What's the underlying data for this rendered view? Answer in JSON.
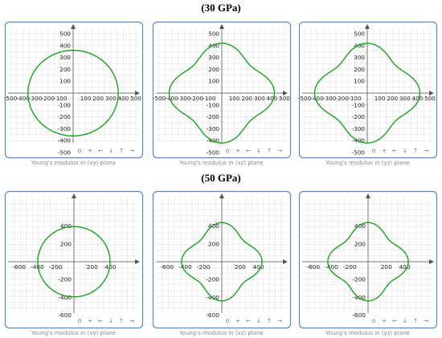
{
  "titles": [
    "(30 GPa)",
    "(50 GPa)"
  ],
  "toolbar_glyphs": [
    "o",
    "+",
    "←",
    "↓",
    "↑",
    "→"
  ],
  "colors": {
    "curve": "#19a31e",
    "frame": "#5b86c4",
    "grid": "#dddddd",
    "axis": "#555555",
    "caption": "#888888"
  },
  "chart_data": [
    {
      "type": "line",
      "title": "",
      "xlabel": "Young's modulus in (xy) plane",
      "xlim": [
        -500,
        500
      ],
      "ylim": [
        -500,
        500
      ],
      "xticks": [
        -500,
        -400,
        -300,
        -200,
        -100,
        100,
        200,
        300,
        400,
        500
      ],
      "yticks": [
        500,
        400,
        300,
        200,
        100,
        -100,
        -200,
        -300,
        -400,
        -500
      ],
      "grid": true,
      "series": [
        {
          "shape": "polar",
          "r0": 360,
          "amp": 0
        }
      ]
    },
    {
      "type": "line",
      "title": "",
      "xlabel": "Young's modulus in (xz) plane",
      "xlim": [
        -500,
        500
      ],
      "ylim": [
        -500,
        500
      ],
      "xticks": [
        -500,
        -400,
        -300,
        -200,
        -100,
        100,
        200,
        300,
        400,
        500
      ],
      "yticks": [
        500,
        400,
        300,
        200,
        100,
        -100,
        -200,
        -300,
        -400,
        -500
      ],
      "grid": true,
      "series": [
        {
          "shape": "polar",
          "r0": 420,
          "amp": 95
        }
      ]
    },
    {
      "type": "line",
      "title": "",
      "xlabel": "Young's modulus in (yz) plane",
      "xlim": [
        -500,
        500
      ],
      "ylim": [
        -500,
        500
      ],
      "xticks": [
        -500,
        -400,
        -300,
        -200,
        -100,
        100,
        200,
        300,
        400,
        500
      ],
      "yticks": [
        500,
        400,
        300,
        200,
        100,
        -100,
        -200,
        -300,
        -400,
        -500
      ],
      "grid": true,
      "series": [
        {
          "shape": "polar",
          "r0": 420,
          "amp": 95
        }
      ]
    },
    {
      "type": "line",
      "title": "",
      "xlabel": "Young's modulus in (xy) plane",
      "xlim": [
        -650,
        650
      ],
      "ylim": [
        -650,
        650
      ],
      "xticks": [
        -600,
        -400,
        -200,
        200,
        400
      ],
      "yticks": [
        400,
        200,
        -200,
        -400,
        -600
      ],
      "grid": true,
      "series": [
        {
          "shape": "polar",
          "r0": 395,
          "amp": 0
        }
      ]
    },
    {
      "type": "line",
      "title": "",
      "xlabel": "Young's modulus in (xz) plane",
      "xlim": [
        -650,
        650
      ],
      "ylim": [
        -650,
        650
      ],
      "xticks": [
        -600,
        -400,
        -200,
        200,
        400
      ],
      "yticks": [
        400,
        200,
        -200,
        -400,
        -600
      ],
      "grid": true,
      "series": [
        {
          "shape": "polar",
          "r0": 440,
          "amp": 105
        }
      ]
    },
    {
      "type": "line",
      "title": "",
      "xlabel": "Young's modulus in (yz) plane",
      "xlim": [
        -650,
        650
      ],
      "ylim": [
        -650,
        650
      ],
      "xticks": [
        -600,
        -400,
        -200,
        200,
        400
      ],
      "yticks": [
        400,
        200,
        -200,
        -400,
        -600
      ],
      "grid": true,
      "series": [
        {
          "shape": "polar",
          "r0": 440,
          "amp": 105
        }
      ]
    }
  ]
}
